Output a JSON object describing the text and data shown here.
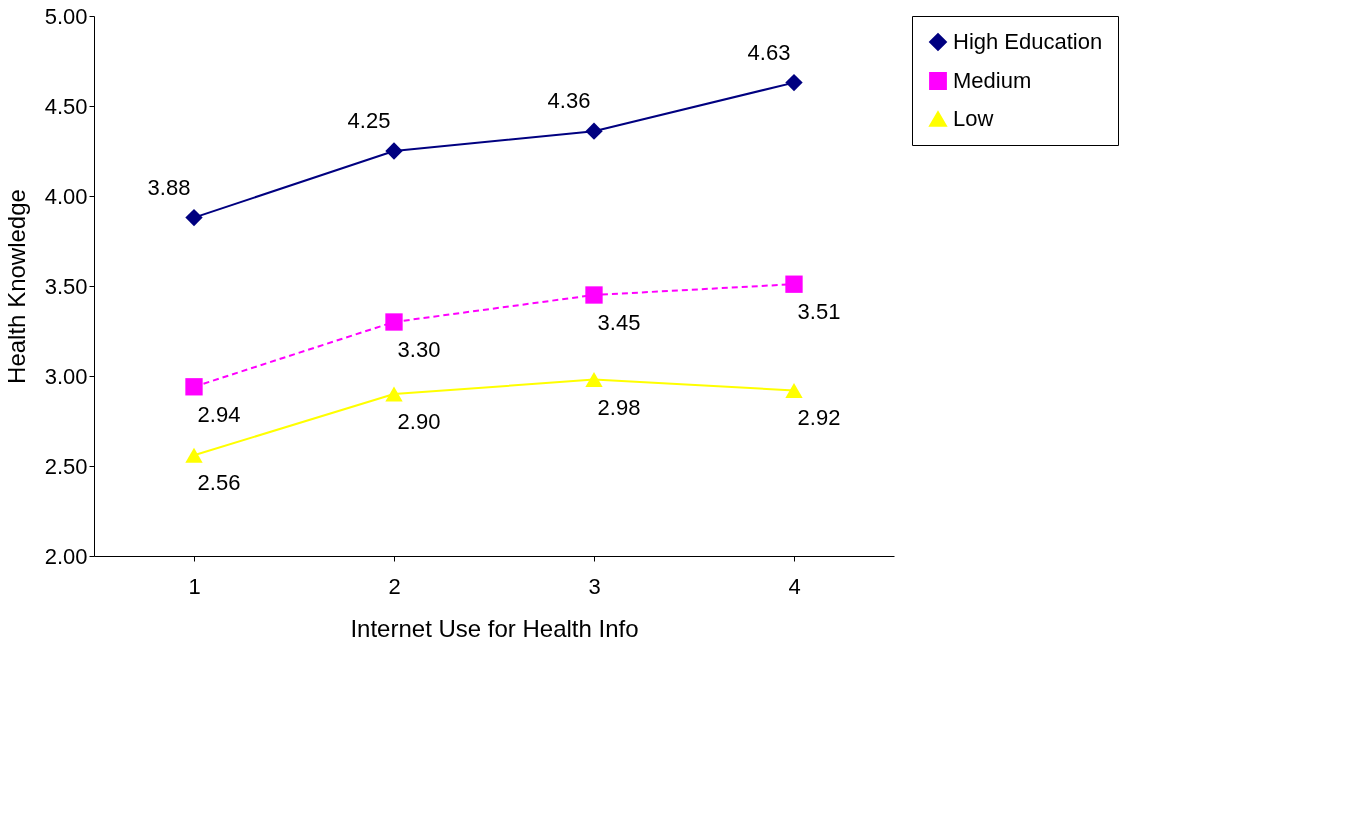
{
  "chart_data": {
    "type": "line",
    "xlabel": "Internet Use for Health Info",
    "ylabel": "Health Knowledge",
    "categories": [
      "1",
      "2",
      "3",
      "4"
    ],
    "series": [
      {
        "name": "High Education",
        "color": "#000080",
        "values": [
          3.88,
          4.25,
          4.36,
          4.63
        ],
        "value_labels": [
          "3.88",
          "4.25",
          "4.36",
          "4.63"
        ],
        "marker": "diamond",
        "line_style": "solid"
      },
      {
        "name": "Medium",
        "color": "#ff00ff",
        "values": [
          2.94,
          3.3,
          3.45,
          3.51
        ],
        "value_labels": [
          "2.94",
          "3.30",
          "3.45",
          "3.51"
        ],
        "marker": "square",
        "line_style": "dashed"
      },
      {
        "name": "Low",
        "color": "#ffff00",
        "values": [
          2.56,
          2.9,
          2.98,
          2.92
        ],
        "value_labels": [
          "2.56",
          "2.90",
          "2.98",
          "2.92"
        ],
        "marker": "triangle",
        "line_style": "solid"
      }
    ],
    "ylim": [
      2,
      5
    ],
    "yticks": [
      {
        "value": 2,
        "label": "2.00"
      },
      {
        "value": 2.5,
        "label": "2.50"
      },
      {
        "value": 3,
        "label": "3.00"
      },
      {
        "value": 3.5,
        "label": "3.50"
      },
      {
        "value": 4,
        "label": "4.00"
      },
      {
        "value": 4.5,
        "label": "4.50"
      },
      {
        "value": 5,
        "label": "5.00"
      }
    ],
    "grid": false,
    "legend": "right"
  }
}
